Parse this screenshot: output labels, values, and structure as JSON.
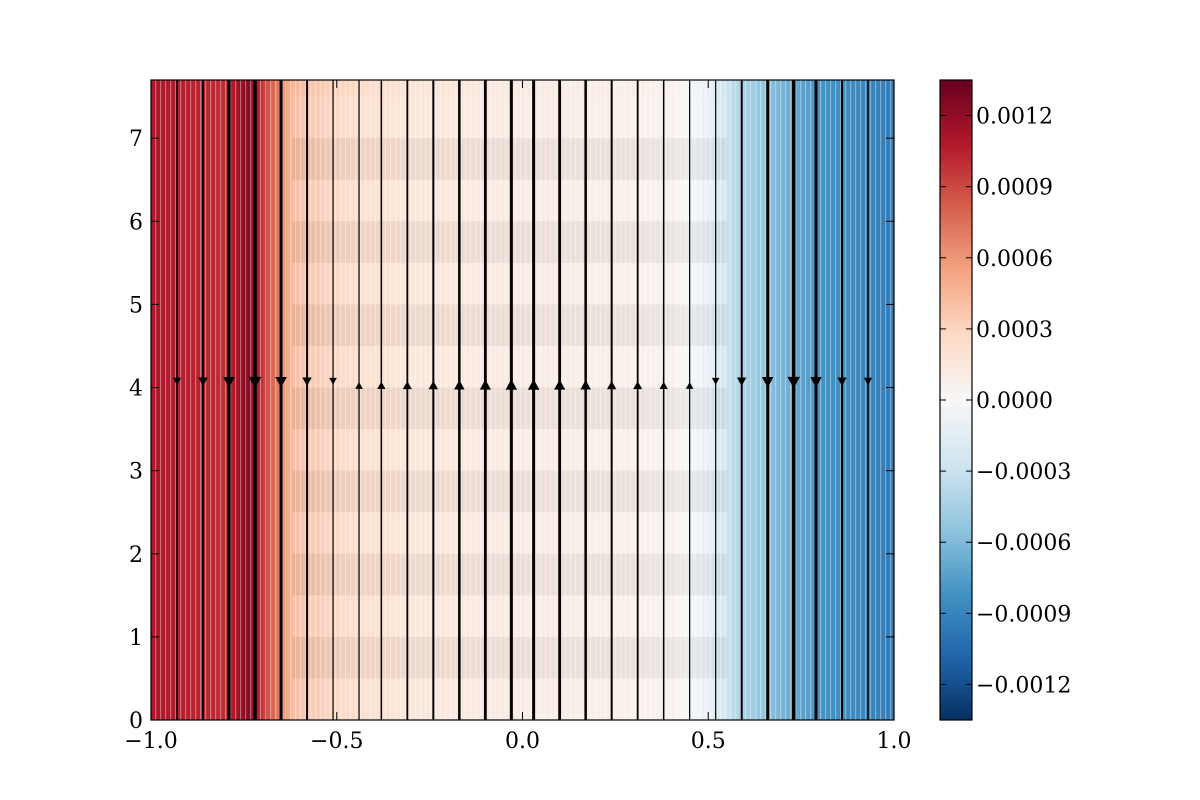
{
  "chart_data": {
    "type": "heatmap",
    "title": "",
    "xlabel": "",
    "ylabel": "",
    "xlim": [
      -1.0,
      1.0
    ],
    "ylim": [
      0,
      7.7
    ],
    "x_ticks": [
      "−1.0",
      "−0.5",
      "0.0",
      "0.5",
      "1.0"
    ],
    "y_ticks": [
      "0",
      "1",
      "2",
      "3",
      "4",
      "5",
      "6",
      "7"
    ],
    "colorbar": {
      "colormap": "RdBu_r",
      "range": [
        -0.00135,
        0.00135
      ],
      "ticks": [
        "0.0012",
        "0.0009",
        "0.0006",
        "0.0003",
        "0.0000",
        "−0.0003",
        "−0.0006",
        "−0.0009",
        "−0.0012"
      ]
    },
    "colormap_stops": [
      "#053061",
      "#2166ac",
      "#4393c3",
      "#92c5de",
      "#d1e5f0",
      "#f7f7f7",
      "#fddbc7",
      "#f4a582",
      "#d6604d",
      "#b2182b",
      "#67001f"
    ],
    "field_profile": [
      {
        "x": -1.0,
        "value": 0.0011
      },
      {
        "x": -0.9,
        "value": 0.00105
      },
      {
        "x": -0.8,
        "value": 0.001
      },
      {
        "x": -0.74,
        "value": 0.00125
      },
      {
        "x": -0.69,
        "value": 0.0009
      },
      {
        "x": -0.62,
        "value": 0.00045
      },
      {
        "x": -0.5,
        "value": 0.0003
      },
      {
        "x": -0.3,
        "value": 0.00018
      },
      {
        "x": 0.0,
        "value": 0.00012
      },
      {
        "x": 0.2,
        "value": 0.0001
      },
      {
        "x": 0.4,
        "value": 6e-05
      },
      {
        "x": 0.5,
        "value": -0.0001
      },
      {
        "x": 0.58,
        "value": -0.0004
      },
      {
        "x": 0.68,
        "value": -0.0006
      },
      {
        "x": 0.8,
        "value": -0.0008
      },
      {
        "x": 1.0,
        "value": -0.00095
      }
    ],
    "streamlines": {
      "arrow_y": 4.05,
      "lines": [
        {
          "x": -0.93,
          "dir": "down",
          "width": 1.5
        },
        {
          "x": -0.86,
          "dir": "down",
          "width": 2
        },
        {
          "x": -0.79,
          "dir": "down",
          "width": 3
        },
        {
          "x": -0.72,
          "dir": "down",
          "width": 3.5
        },
        {
          "x": -0.65,
          "dir": "down",
          "width": 3
        },
        {
          "x": -0.58,
          "dir": "down",
          "width": 2
        },
        {
          "x": -0.51,
          "dir": "down",
          "width": 1.2
        },
        {
          "x": -0.44,
          "dir": "up",
          "width": 1.2
        },
        {
          "x": -0.38,
          "dir": "up",
          "width": 1.5
        },
        {
          "x": -0.31,
          "dir": "up",
          "width": 1.8
        },
        {
          "x": -0.24,
          "dir": "up",
          "width": 2
        },
        {
          "x": -0.17,
          "dir": "up",
          "width": 2.5
        },
        {
          "x": -0.1,
          "dir": "up",
          "width": 2.8
        },
        {
          "x": -0.03,
          "dir": "up",
          "width": 3
        },
        {
          "x": 0.03,
          "dir": "up",
          "width": 3
        },
        {
          "x": 0.1,
          "dir": "up",
          "width": 2.8
        },
        {
          "x": 0.17,
          "dir": "up",
          "width": 2.5
        },
        {
          "x": 0.24,
          "dir": "up",
          "width": 2
        },
        {
          "x": 0.31,
          "dir": "up",
          "width": 1.8
        },
        {
          "x": 0.38,
          "dir": "up",
          "width": 1.5
        },
        {
          "x": 0.45,
          "dir": "up",
          "width": 1.2
        },
        {
          "x": 0.52,
          "dir": "down",
          "width": 1.2
        },
        {
          "x": 0.59,
          "dir": "down",
          "width": 2
        },
        {
          "x": 0.66,
          "dir": "down",
          "width": 3
        },
        {
          "x": 0.73,
          "dir": "down",
          "width": 3.5
        },
        {
          "x": 0.79,
          "dir": "down",
          "width": 3
        },
        {
          "x": 0.86,
          "dir": "down",
          "width": 2
        },
        {
          "x": 0.93,
          "dir": "down",
          "width": 1.5
        }
      ]
    }
  }
}
